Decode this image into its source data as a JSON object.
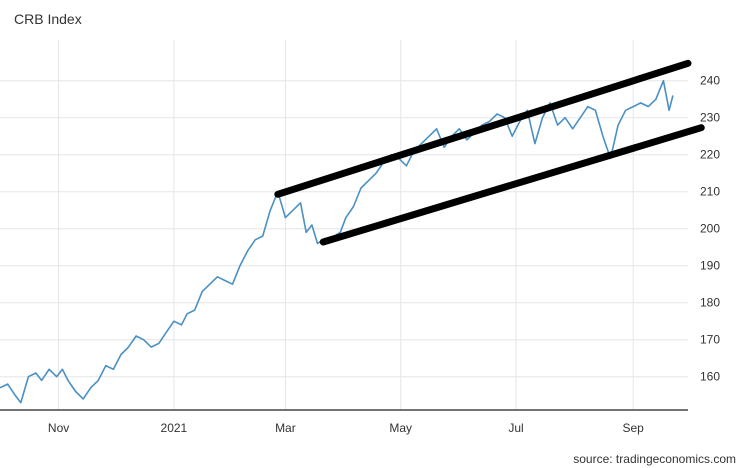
{
  "chart_data": {
    "type": "line",
    "title": "CRB Index",
    "source": "source: tradingeconomics.com",
    "xlabel": "",
    "ylabel": "",
    "x_ticks": [
      "Nov",
      "2021",
      "Mar",
      "May",
      "Jul",
      "Sep"
    ],
    "y_ticks": [
      160,
      170,
      180,
      190,
      200,
      210,
      220,
      230,
      240
    ],
    "xlim": [
      "2020-10-01",
      "2021-09-30"
    ],
    "ylim": [
      151,
      251
    ],
    "grid": true,
    "line_color": "#4a90c4",
    "channel_color": "#000000",
    "series": [
      {
        "x": [
          "2020-10-01",
          "2020-10-05",
          "2020-10-09",
          "2020-10-12",
          "2020-10-16",
          "2020-10-20",
          "2020-10-23",
          "2020-10-27",
          "2020-10-31",
          "2020-11-03",
          "2020-11-06",
          "2020-11-10",
          "2020-11-14",
          "2020-11-18",
          "2020-11-22",
          "2020-11-26",
          "2020-11-30",
          "2020-12-04",
          "2020-12-08",
          "2020-12-12",
          "2020-12-16",
          "2020-12-20",
          "2020-12-24",
          "2020-12-28",
          "2021-01-01",
          "2021-01-05",
          "2021-01-08",
          "2021-01-12",
          "2021-01-16",
          "2021-01-20",
          "2021-01-24",
          "2021-01-28",
          "2021-02-01",
          "2021-02-05",
          "2021-02-09",
          "2021-02-13",
          "2021-02-17",
          "2021-02-21",
          "2021-02-25",
          "2021-03-01",
          "2021-03-05",
          "2021-03-09",
          "2021-03-12",
          "2021-03-15",
          "2021-03-18",
          "2021-03-21",
          "2021-03-24",
          "2021-03-27",
          "2021-03-30",
          "2021-04-02",
          "2021-04-06",
          "2021-04-10",
          "2021-04-14",
          "2021-04-18",
          "2021-04-22",
          "2021-04-26",
          "2021-04-30",
          "2021-05-04",
          "2021-05-08",
          "2021-05-12",
          "2021-05-16",
          "2021-05-20",
          "2021-05-24",
          "2021-05-28",
          "2021-06-01",
          "2021-06-05",
          "2021-06-09",
          "2021-06-13",
          "2021-06-17",
          "2021-06-21",
          "2021-06-25",
          "2021-06-29",
          "2021-07-03",
          "2021-07-07",
          "2021-07-11",
          "2021-07-15",
          "2021-07-19",
          "2021-07-23",
          "2021-07-27",
          "2021-07-31",
          "2021-08-04",
          "2021-08-08",
          "2021-08-12",
          "2021-08-16",
          "2021-08-20",
          "2021-08-24",
          "2021-08-28",
          "2021-09-01",
          "2021-09-05",
          "2021-09-09",
          "2021-09-13",
          "2021-09-17",
          "2021-09-20",
          "2021-09-22"
        ],
        "values": [
          157,
          158,
          155,
          153,
          160,
          161,
          159,
          162,
          160,
          162,
          159,
          156,
          154,
          157,
          159,
          163,
          162,
          166,
          168,
          171,
          170,
          168,
          169,
          172,
          175,
          174,
          177,
          178,
          183,
          185,
          187,
          186,
          185,
          190,
          194,
          197,
          198,
          205,
          210,
          203,
          205,
          207,
          199,
          201,
          196,
          197,
          197,
          198,
          199,
          203,
          206,
          211,
          213,
          215,
          218,
          220,
          219,
          217,
          221,
          223,
          225,
          227,
          222,
          225,
          227,
          224,
          226,
          228,
          229,
          231,
          230,
          225,
          229,
          232,
          223,
          230,
          234,
          228,
          230,
          227,
          230,
          233,
          232,
          225,
          219,
          228,
          232,
          233,
          234,
          233,
          235,
          240,
          232,
          236
        ]
      }
    ],
    "channel_upper": {
      "x": [
        "2021-02-25",
        "2021-09-30"
      ],
      "values": [
        209.3,
        244.7
      ]
    },
    "channel_lower": {
      "x": [
        "2021-03-21",
        "2021-10-07"
      ],
      "values": [
        196.4,
        227.3
      ]
    }
  }
}
